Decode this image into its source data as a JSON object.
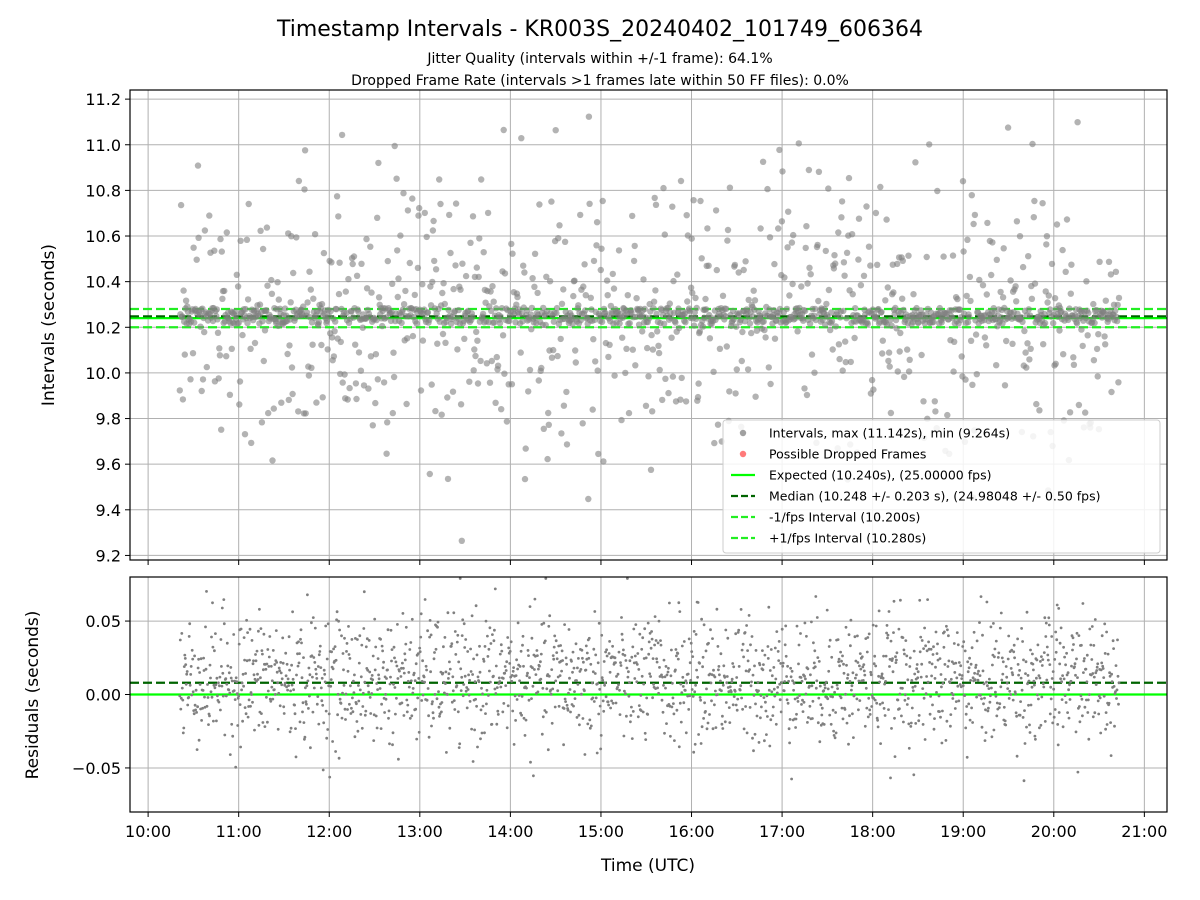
{
  "title": "Timestamp Intervals - KR003S_20240402_101749_606364",
  "subtitle_1": "Jitter Quality (intervals within +/-1 frame): 64.1%",
  "subtitle_2": "Dropped Frame Rate (intervals >1 frames late within 50 FF files): 0.0%",
  "colors": {
    "points": "#808080",
    "dropped": "#ff4d4d",
    "expected": "#00ff00",
    "median": "#006400",
    "interval_lines": "#22ee22",
    "grid": "#b0b0b0"
  },
  "chart_data": [
    {
      "type": "scatter",
      "panel": "top",
      "ylabel": "Intervals (seconds)",
      "xlabel": "",
      "x_unit": "hours UTC",
      "xlim": [
        9.8,
        21.25
      ],
      "ylim": [
        9.18,
        11.24
      ],
      "yticks": [
        9.2,
        9.4,
        9.6,
        9.8,
        10.0,
        10.2,
        10.4,
        10.6,
        10.8,
        11.0,
        11.2
      ],
      "ytick_labels": [
        "9.2",
        "9.4",
        "9.6",
        "9.8",
        "10.0",
        "10.2",
        "10.4",
        "10.6",
        "10.8",
        "11.0",
        "11.2"
      ],
      "grid": true,
      "legend_position": "lower-right",
      "legend": [
        {
          "label": "Intervals, max (11.142s), min (9.264s)",
          "style": "point",
          "color": "#808080"
        },
        {
          "label": "Possible Dropped Frames",
          "style": "point",
          "color": "#ff4d4d"
        },
        {
          "label": "Expected (10.240s), (25.00000 fps)",
          "style": "solid",
          "color": "#00ff00"
        },
        {
          "label": "Median (10.248 +/- 0.203 s), (24.98048 +/- 0.50 fps)",
          "style": "dashed",
          "color": "#006400"
        },
        {
          "label": "-1/fps Interval (10.200s)",
          "style": "dashed",
          "color": "#22ee22"
        },
        {
          "label": "+1/fps Interval (10.280s)",
          "style": "dashed",
          "color": "#22ee22"
        }
      ],
      "hlines": [
        {
          "name": "expected",
          "y": 10.24,
          "style": "solid",
          "color": "#00ff00"
        },
        {
          "name": "median",
          "y": 10.248,
          "style": "dashed",
          "color": "#006400"
        },
        {
          "name": "minus-1-fps",
          "y": 10.2,
          "style": "dashed",
          "color": "#22ee22"
        },
        {
          "name": "plus-1-fps",
          "y": 10.28,
          "style": "dashed",
          "color": "#22ee22"
        }
      ],
      "x_start": 10.35,
      "x_end": 20.72,
      "center": 10.25,
      "max": 11.142,
      "min": 9.264,
      "dropped_count": 0
    },
    {
      "type": "scatter",
      "panel": "bottom",
      "ylabel": "Residuals (seconds)",
      "xlabel": "Time (UTC)",
      "x_unit": "hours UTC",
      "xlim": [
        9.8,
        21.25
      ],
      "ylim": [
        -0.08,
        0.08
      ],
      "yticks": [
        -0.05,
        0.0,
        0.05
      ],
      "ytick_labels": [
        "−0.05",
        "0.00",
        "0.05"
      ],
      "xticks": [
        10,
        11,
        12,
        13,
        14,
        15,
        16,
        17,
        18,
        19,
        20,
        21
      ],
      "xtick_labels": [
        "10:00",
        "11:00",
        "12:00",
        "13:00",
        "14:00",
        "15:00",
        "16:00",
        "17:00",
        "18:00",
        "19:00",
        "20:00",
        "21:00"
      ],
      "grid": true,
      "hlines": [
        {
          "name": "zero",
          "y": 0.0,
          "style": "solid",
          "color": "#00ff00"
        },
        {
          "name": "median-offset",
          "y": 0.008,
          "style": "dashed",
          "color": "#006400"
        }
      ],
      "x_start": 10.35,
      "x_end": 20.72,
      "center": 0.01
    }
  ]
}
